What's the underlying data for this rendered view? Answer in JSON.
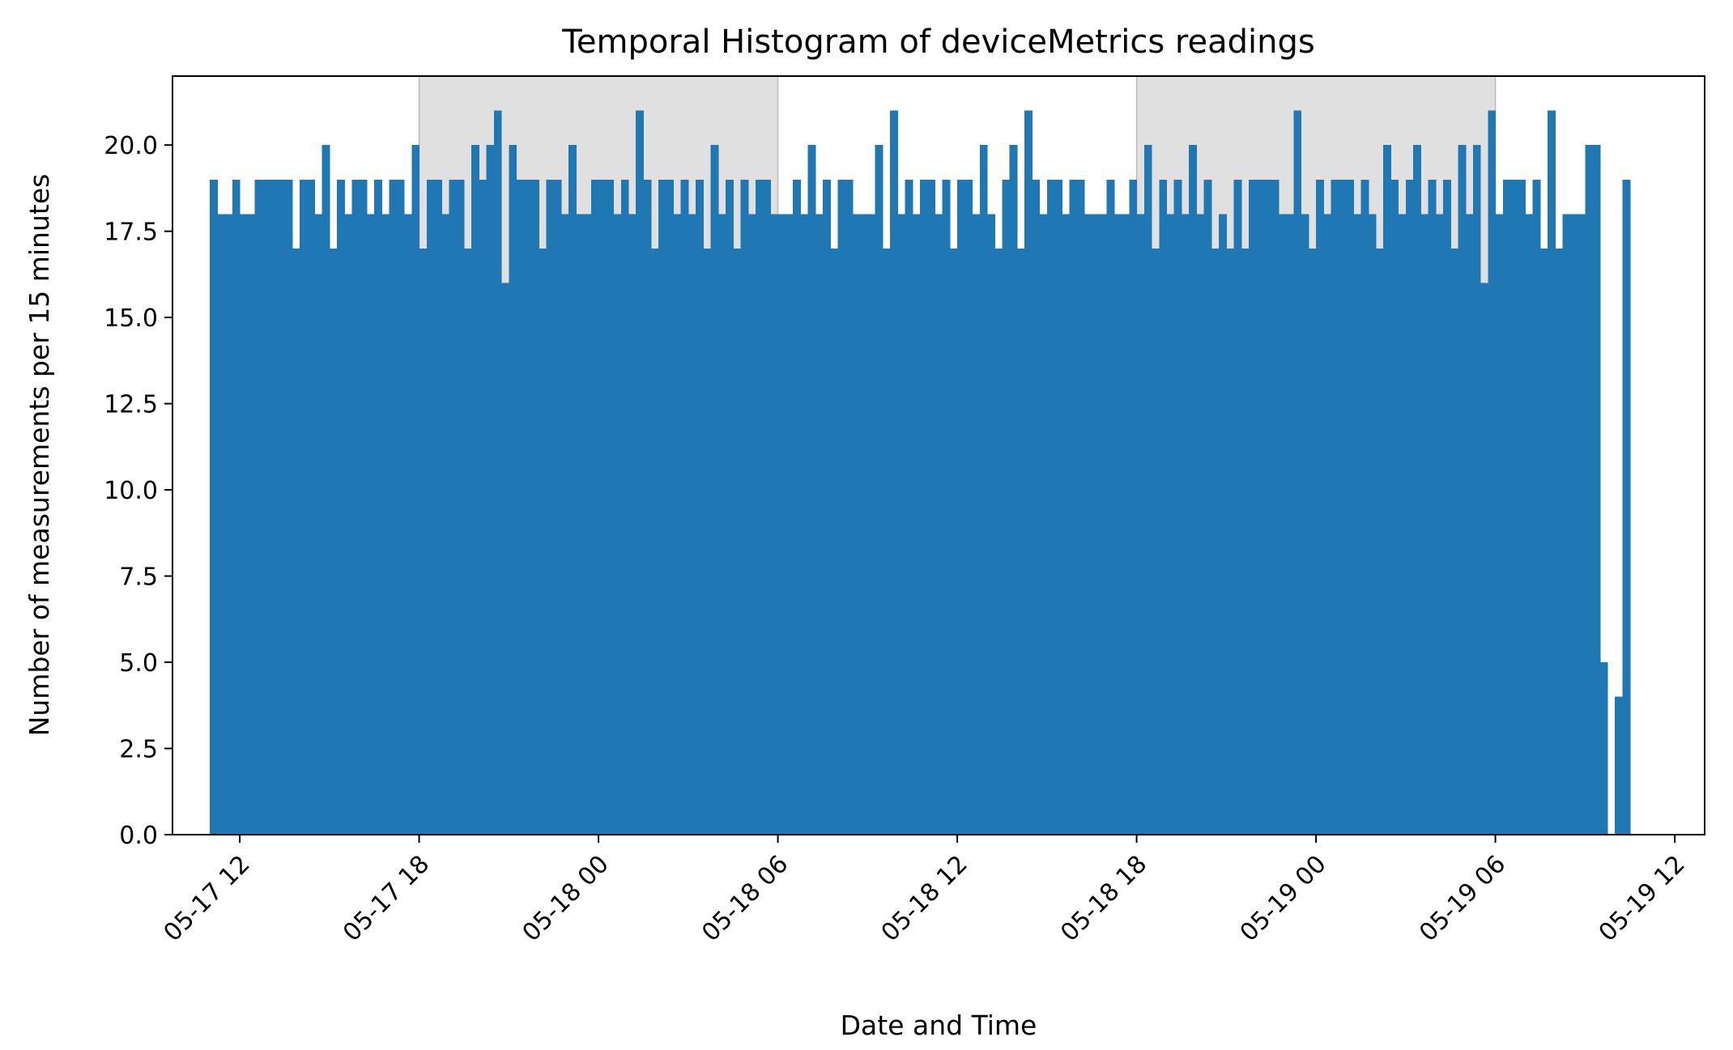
{
  "chart_data": {
    "type": "bar",
    "title": "Temporal Histogram of deviceMetrics readings",
    "xlabel": "Date and Time",
    "ylabel": "Number of measurements per 15 minutes",
    "bin_minutes": 15,
    "x_start": "05-17 11:00",
    "xlim": [
      "05-17 09:45",
      "05-19 13:00"
    ],
    "ylim": [
      0,
      22
    ],
    "yticks": [
      "0.0",
      "2.5",
      "5.0",
      "7.5",
      "10.0",
      "12.5",
      "15.0",
      "17.5",
      "20.0"
    ],
    "xticks": [
      "05-17 12",
      "05-17 18",
      "05-18 00",
      "05-18 06",
      "05-18 12",
      "05-18 18",
      "05-19 00",
      "05-19 06",
      "05-19 12"
    ],
    "shaded_periods": [
      {
        "start": "05-17 18:00",
        "end": "05-18 06:00"
      },
      {
        "start": "05-18 18:00",
        "end": "05-19 06:00"
      }
    ],
    "colors": {
      "bar": "#1f77b4",
      "shade": "#e0e0e0",
      "shade_edge": "#bdbdbd"
    },
    "grid": false,
    "values": [
      19,
      18,
      18,
      19,
      18,
      18,
      19,
      19,
      19,
      19,
      19,
      17,
      19,
      19,
      18,
      20,
      17,
      19,
      18,
      19,
      19,
      18,
      19,
      18,
      19,
      19,
      18,
      20,
      17,
      19,
      19,
      18,
      19,
      19,
      17,
      20,
      19,
      20,
      21,
      16,
      20,
      19,
      19,
      19,
      17,
      19,
      19,
      18,
      20,
      18,
      18,
      19,
      19,
      19,
      18,
      19,
      18,
      21,
      19,
      17,
      19,
      19,
      18,
      19,
      18,
      19,
      17,
      20,
      18,
      19,
      17,
      19,
      18,
      19,
      19,
      18,
      18,
      18,
      19,
      18,
      20,
      18,
      19,
      17,
      19,
      19,
      18,
      18,
      18,
      20,
      17,
      21,
      18,
      19,
      18,
      19,
      19,
      18,
      19,
      17,
      19,
      19,
      18,
      20,
      18,
      17,
      19,
      20,
      17,
      21,
      19,
      18,
      19,
      19,
      18,
      19,
      19,
      18,
      18,
      18,
      19,
      18,
      18,
      19,
      18,
      20,
      17,
      19,
      18,
      19,
      18,
      20,
      18,
      19,
      17,
      18,
      17,
      19,
      17,
      19,
      19,
      19,
      19,
      18,
      18,
      21,
      18,
      17,
      19,
      18,
      19,
      19,
      19,
      18,
      19,
      18,
      17,
      20,
      19,
      18,
      19,
      20,
      18,
      19,
      18,
      19,
      17,
      20,
      18,
      20,
      16,
      21,
      18,
      19,
      19,
      19,
      18,
      19,
      17,
      21,
      17,
      18,
      18,
      18,
      20,
      20,
      5,
      0,
      4,
      19
    ]
  }
}
